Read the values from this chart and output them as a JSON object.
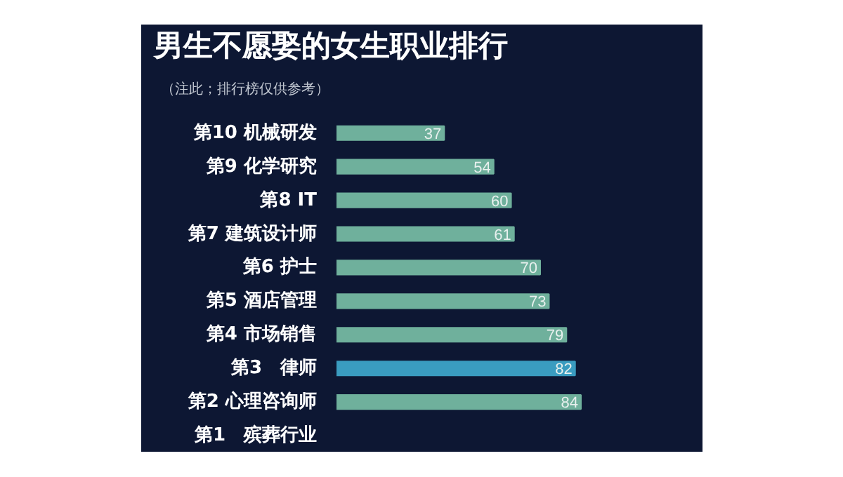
{
  "chart_data": {
    "type": "bar",
    "orientation": "horizontal",
    "title": "男生不愿娶的女生职业排行",
    "subtitle": "（注此；排行榜仅供参考）",
    "categories": [
      "第10 机械研发",
      "第9 化学研究",
      "第8 IT",
      "第7 建筑设计师",
      "第6 护士",
      "第5 酒店管理",
      "第4 市场销售",
      "第3　律师",
      "第2 心理咨询师",
      "第1　殡葬行业"
    ],
    "values": [
      37,
      54,
      60,
      61,
      70,
      73,
      79,
      82,
      84,
      null
    ],
    "colors": [
      "#6fb09c",
      "#6fb09c",
      "#6fb09c",
      "#6fb09c",
      "#6fb09c",
      "#6fb09c",
      "#6fb09c",
      "#3a9cc0",
      "#6fb09c",
      "#6fb09c"
    ],
    "data_labels": true,
    "grid": false
  }
}
